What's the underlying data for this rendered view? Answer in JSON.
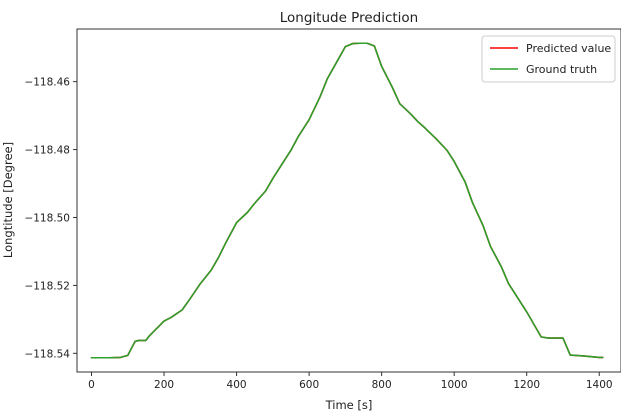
{
  "chart_data": {
    "type": "line",
    "title": "Longitude Prediction",
    "xlabel": "Time [s]",
    "ylabel": "Longtitude [Degree]",
    "xlim": [
      -40,
      1460
    ],
    "ylim": [
      -118.5455,
      -118.4445
    ],
    "xticks": [
      0,
      200,
      400,
      600,
      800,
      1000,
      1200,
      1400
    ],
    "xtick_labels": [
      "0",
      "200",
      "400",
      "600",
      "800",
      "1000",
      "1200",
      "1400"
    ],
    "yticks": [
      -118.46,
      -118.48,
      -118.5,
      -118.52,
      -118.54
    ],
    "ytick_labels": [
      "−118.46",
      "−118.48",
      "−118.50",
      "−118.52",
      "−118.54"
    ],
    "grid": false,
    "legend_position": "top-right",
    "x": [
      0,
      50,
      80,
      100,
      120,
      130,
      150,
      160,
      200,
      220,
      250,
      270,
      300,
      330,
      350,
      370,
      400,
      430,
      450,
      480,
      500,
      530,
      550,
      570,
      600,
      630,
      650,
      680,
      700,
      720,
      740,
      760,
      780,
      800,
      830,
      850,
      880,
      900,
      920,
      950,
      980,
      1000,
      1030,
      1050,
      1080,
      1100,
      1130,
      1150,
      1170,
      1200,
      1240,
      1260,
      1280,
      1300,
      1320,
      1360,
      1400,
      1410
    ],
    "series": [
      {
        "name": "Predicted value",
        "color": "#ff0000",
        "values": [
          -118.5413,
          -118.5413,
          -118.5412,
          -118.5406,
          -118.5365,
          -118.5362,
          -118.5362,
          -118.5348,
          -118.5305,
          -118.5294,
          -118.5272,
          -118.5242,
          -118.5195,
          -118.5155,
          -118.5118,
          -118.5075,
          -118.5015,
          -118.4985,
          -118.4958,
          -118.4922,
          -118.4885,
          -118.4835,
          -118.4802,
          -118.4762,
          -118.4712,
          -118.4645,
          -118.4592,
          -118.4535,
          -118.4497,
          -118.4488,
          -118.4487,
          -118.4487,
          -118.4495,
          -118.4555,
          -118.4618,
          -118.4665,
          -118.4695,
          -118.4718,
          -118.4737,
          -118.4768,
          -118.4802,
          -118.4835,
          -118.4895,
          -118.4955,
          -118.5025,
          -118.5085,
          -118.5145,
          -118.5195,
          -118.5228,
          -118.5278,
          -118.5352,
          -118.5355,
          -118.5355,
          -118.5355,
          -118.5405,
          -118.5408,
          -118.5412,
          -118.5412
        ]
      },
      {
        "name": "Ground truth",
        "color": "#2ca02c",
        "values": [
          -118.5413,
          -118.5413,
          -118.5412,
          -118.5406,
          -118.5365,
          -118.5362,
          -118.5362,
          -118.5348,
          -118.5305,
          -118.5294,
          -118.5272,
          -118.5242,
          -118.5195,
          -118.5155,
          -118.5118,
          -118.5075,
          -118.5015,
          -118.4985,
          -118.4958,
          -118.4922,
          -118.4885,
          -118.4835,
          -118.4802,
          -118.4762,
          -118.4712,
          -118.4645,
          -118.4592,
          -118.4535,
          -118.4497,
          -118.4488,
          -118.4487,
          -118.4487,
          -118.4495,
          -118.4555,
          -118.4618,
          -118.4665,
          -118.4695,
          -118.4718,
          -118.4737,
          -118.4768,
          -118.4802,
          -118.4835,
          -118.4895,
          -118.4955,
          -118.5025,
          -118.5085,
          -118.5145,
          -118.5195,
          -118.5228,
          -118.5278,
          -118.5352,
          -118.5355,
          -118.5355,
          -118.5355,
          -118.5405,
          -118.5408,
          -118.5412,
          -118.5412
        ]
      }
    ]
  }
}
